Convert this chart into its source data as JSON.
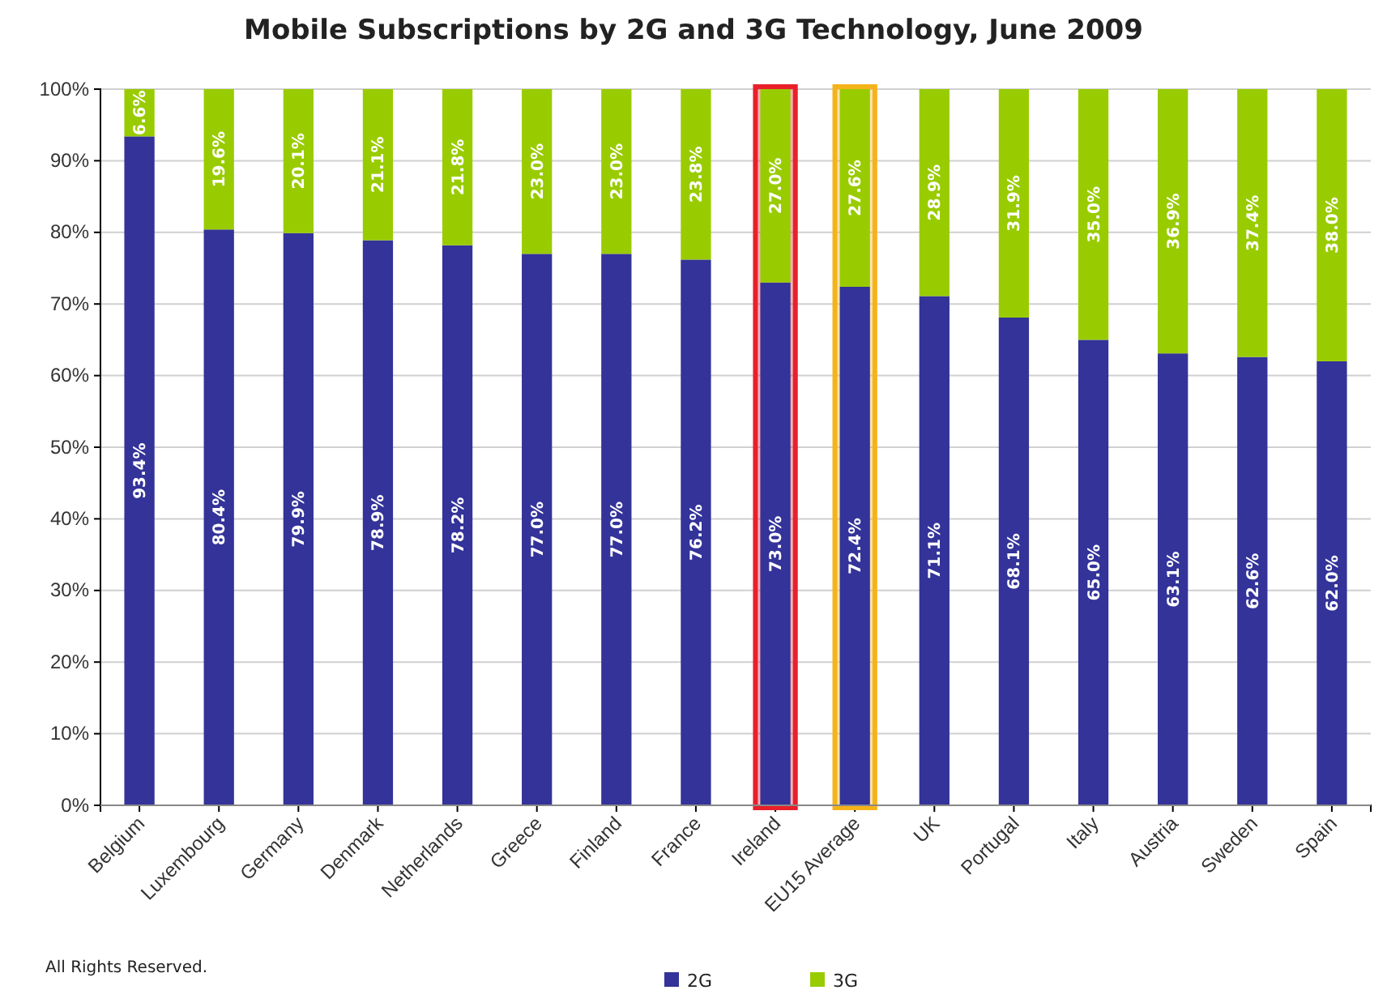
{
  "chart_data": {
    "type": "bar",
    "stacked": true,
    "title": "Mobile Subscriptions by 2G and 3G Technology, June 2009",
    "categories": [
      "Belgium",
      "Luxembourg",
      "Germany",
      "Denmark",
      "Netherlands",
      "Greece",
      "Finland",
      "France",
      "Ireland",
      "EU15 Average",
      "UK",
      "Portugal",
      "Italy",
      "Austria",
      "Sweden",
      "Spain"
    ],
    "series": [
      {
        "name": "2G",
        "color": "#333399",
        "values": [
          93.4,
          80.4,
          79.9,
          78.9,
          78.2,
          77.0,
          77.0,
          76.2,
          73.0,
          72.4,
          71.1,
          68.1,
          65.0,
          63.1,
          62.6,
          62.0
        ],
        "value_labels": [
          "93.4%",
          "80.4%",
          "79.9%",
          "78.9%",
          "78.2%",
          "77.0%",
          "77.0%",
          "76.2%",
          "73.0%",
          "72.4%",
          "71.1%",
          "68.1%",
          "65.0%",
          "63.1%",
          "62.6%",
          "62.0%"
        ]
      },
      {
        "name": "3G",
        "color": "#99cc00",
        "values": [
          6.6,
          19.6,
          20.1,
          21.1,
          21.8,
          23.0,
          23.0,
          23.8,
          27.0,
          27.6,
          28.9,
          31.9,
          35.0,
          36.9,
          37.4,
          38.0
        ],
        "value_labels": [
          "6.6%",
          "19.6%",
          "20.1%",
          "21.1%",
          "21.8%",
          "23.0%",
          "23.0%",
          "23.8%",
          "27.0%",
          "27.6%",
          "28.9%",
          "31.9%",
          "35.0%",
          "36.9%",
          "37.4%",
          "38.0%"
        ]
      }
    ],
    "ylim": [
      0,
      100
    ],
    "yticks": [
      {
        "value": 0,
        "label": "0%"
      },
      {
        "value": 10,
        "label": "10%"
      },
      {
        "value": 20,
        "label": "20%"
      },
      {
        "value": 30,
        "label": "30%"
      },
      {
        "value": 40,
        "label": "40%"
      },
      {
        "value": 50,
        "label": "50%"
      },
      {
        "value": 60,
        "label": "60%"
      },
      {
        "value": 70,
        "label": "70%"
      },
      {
        "value": 80,
        "label": "80%"
      },
      {
        "value": 90,
        "label": "90%"
      },
      {
        "value": 100,
        "label": "100%"
      }
    ],
    "grid": "y",
    "legend": "bottom",
    "bands": [
      {
        "axis": "x",
        "from": "Ireland",
        "to": "Ireland",
        "color": "#e8202a"
      },
      {
        "axis": "x",
        "from": "EU15 Average",
        "to": "EU15 Average",
        "color": "#f5b31b"
      }
    ],
    "annotations": [
      "All Rights Reserved."
    ]
  }
}
